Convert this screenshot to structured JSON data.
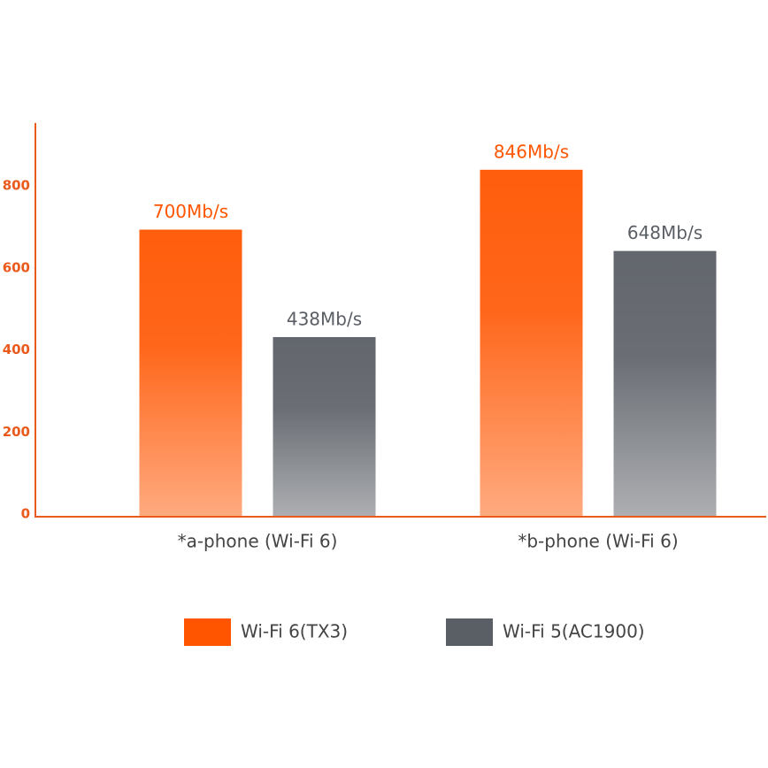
{
  "chart_data": {
    "type": "bar",
    "categories": [
      "*a-phone (Wi-Fi 6)",
      "*b-phone (Wi-Fi 6)"
    ],
    "series": [
      {
        "name": "Wi-Fi 6(TX3)",
        "color": "#ff5500",
        "values": [
          700,
          846
        ],
        "value_labels": [
          "700Mb/s",
          "846Mb/s"
        ]
      },
      {
        "name": "Wi-Fi 5(AC1900)",
        "color": "#5a5e65",
        "values": [
          438,
          648
        ],
        "value_labels": [
          "438Mb/s",
          "648Mb/s"
        ]
      }
    ],
    "ylim": [
      0,
      960
    ],
    "yticks": [
      0,
      200,
      400,
      600,
      800
    ],
    "axis_color": "#ea5a1c"
  }
}
